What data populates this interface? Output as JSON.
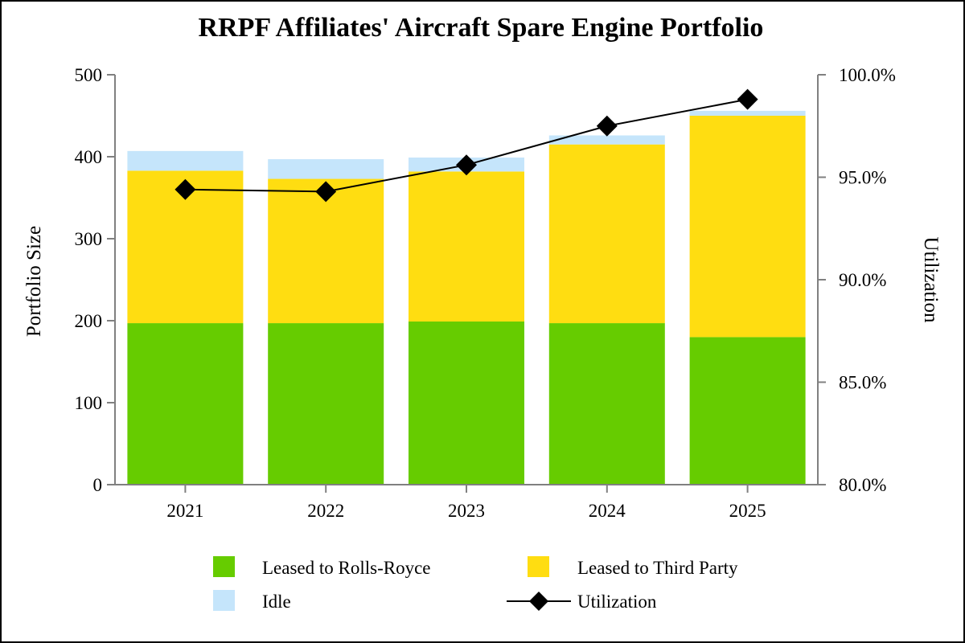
{
  "chart_data": {
    "type": "bar",
    "stacked": true,
    "title": "RRPF Affiliates' Aircraft Spare Engine Portfolio",
    "categories": [
      "2021",
      "2022",
      "2023",
      "2024",
      "2025"
    ],
    "series": [
      {
        "name": "Leased to Rolls-Royce",
        "color": "#66cc00",
        "values": [
          197,
          197,
          199,
          197,
          180
        ]
      },
      {
        "name": "Leased to Third Party",
        "color": "#ffdd11",
        "values": [
          186,
          176,
          183,
          218,
          270
        ]
      },
      {
        "name": "Idle",
        "color": "#c5e5fb",
        "values": [
          24,
          24,
          17,
          11,
          6
        ]
      }
    ],
    "line_series": {
      "name": "Utilization",
      "color": "#000000",
      "marker": "diamond",
      "axis": "right",
      "values": [
        94.4,
        94.3,
        95.6,
        97.5,
        98.8
      ]
    },
    "ylabel": "Portfolio Size",
    "ylim": [
      0,
      500
    ],
    "yticks": [
      "0",
      "100",
      "200",
      "300",
      "400",
      "500"
    ],
    "y2label": "Utilization",
    "y2lim": [
      80,
      100
    ],
    "y2ticks": [
      "80.0%",
      "85.0%",
      "90.0%",
      "95.0%",
      "100.0%"
    ],
    "legend": [
      "Leased to Rolls-Royce",
      "Leased to Third Party",
      "Idle",
      "Utilization"
    ],
    "legend_position": "bottom",
    "grid": false
  }
}
